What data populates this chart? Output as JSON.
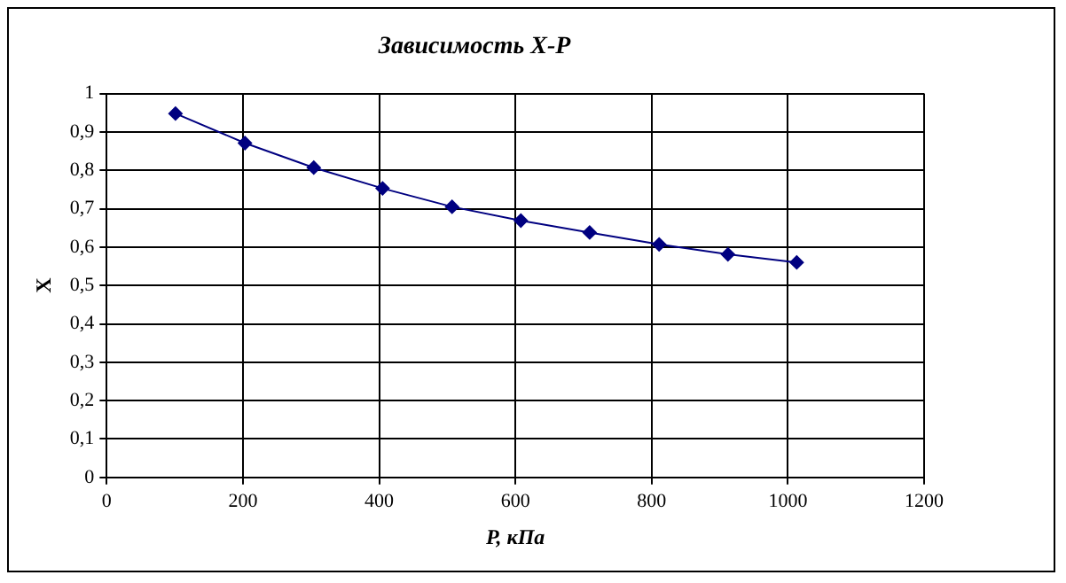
{
  "chart_data": {
    "type": "line",
    "title": "Зависимость X-P",
    "xlabel": "P, кПа",
    "ylabel": "X",
    "x": [
      101,
      203,
      304,
      405,
      507,
      608,
      709,
      811,
      912,
      1013
    ],
    "series": [
      {
        "color": "#000080",
        "values": [
          0.948,
          0.871,
          0.807,
          0.753,
          0.705,
          0.669,
          0.638,
          0.607,
          0.581,
          0.56
        ]
      }
    ],
    "xlim": [
      0,
      1200
    ],
    "xticks": [
      0,
      200,
      400,
      600,
      800,
      1000,
      1200
    ],
    "ylim": [
      0,
      1
    ],
    "yticks": [
      0,
      {
        "value": 0.1,
        "label": "0,1"
      },
      {
        "value": 0.2,
        "label": "0,2"
      },
      {
        "value": 0.3,
        "label": "0,3"
      },
      {
        "value": 0.4,
        "label": "0,4"
      },
      {
        "value": 0.5,
        "label": "0,5"
      },
      {
        "value": 0.6,
        "label": "0,6"
      },
      {
        "value": 0.7,
        "label": "0,7"
      },
      {
        "value": 0.8,
        "label": "0,8"
      },
      {
        "value": 0.9,
        "label": "0,9"
      },
      1
    ],
    "grid": true,
    "legend": false,
    "marker": "diamond",
    "line_style": "solid"
  }
}
